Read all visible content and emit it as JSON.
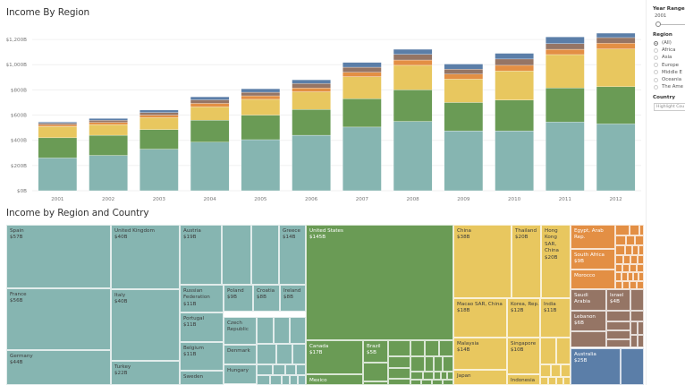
{
  "chart_data": [
    {
      "type": "bar",
      "stacked": true,
      "title": "Income By Region",
      "xlabel": "",
      "ylabel": "",
      "ylim": [
        0,
        1300
      ],
      "grid": true,
      "legend": "none",
      "y_ticks": [
        0,
        200,
        400,
        600,
        800,
        1000,
        1200
      ],
      "y_tick_labels": [
        "$0B",
        "$200B",
        "$400B",
        "$600B",
        "$800B",
        "$1,000B",
        "$1,200B"
      ],
      "categories": [
        "2001",
        "2002",
        "2003",
        "2004",
        "2005",
        "2006",
        "2007",
        "2008",
        "2009",
        "2010",
        "2011",
        "2012"
      ],
      "series": [
        {
          "name": "Europe",
          "color": "#86b5b1",
          "values": [
            260,
            280,
            330,
            385,
            405,
            440,
            505,
            550,
            475,
            475,
            545,
            530
          ]
        },
        {
          "name": "The Americas",
          "color": "#6a9b55",
          "values": [
            160,
            160,
            155,
            175,
            195,
            205,
            225,
            250,
            225,
            245,
            270,
            295
          ]
        },
        {
          "name": "Asia",
          "color": "#e8c75f",
          "values": [
            90,
            85,
            95,
            105,
            125,
            140,
            175,
            195,
            185,
            230,
            265,
            300
          ]
        },
        {
          "name": "Africa",
          "color": "#e38f44",
          "values": [
            14,
            17,
            20,
            28,
            28,
            30,
            35,
            42,
            40,
            45,
            42,
            45
          ]
        },
        {
          "name": "Middle East",
          "color": "#957565",
          "values": [
            12,
            17,
            20,
            28,
            28,
            35,
            40,
            45,
            40,
            50,
            45,
            45
          ]
        },
        {
          "name": "Oceania",
          "color": "#5b7ea8",
          "values": [
            9,
            14,
            20,
            24,
            28,
            30,
            38,
            40,
            40,
            45,
            53,
            35
          ]
        }
      ]
    },
    {
      "type": "treemap",
      "title": "Income by Region and Country",
      "regions": [
        {
          "name": "Europe",
          "color": "#86b5b1",
          "countries": [
            {
              "name": "Spain",
              "value": "$57B"
            },
            {
              "name": "France",
              "value": "$56B"
            },
            {
              "name": "Germany",
              "value": "$44B"
            },
            {
              "name": "United Kingdom",
              "value": "$40B"
            },
            {
              "name": "Italy",
              "value": "$40B"
            },
            {
              "name": "Turkey",
              "value": "$22B"
            },
            {
              "name": "Austria",
              "value": "$19B"
            },
            {
              "name": "Greece",
              "value": "$14B"
            },
            {
              "name": "Russian Federation",
              "value": "$11B"
            },
            {
              "name": "Poland",
              "value": "$9B"
            },
            {
              "name": "Croatia",
              "value": "$8B"
            },
            {
              "name": "Ireland",
              "value": "$8B"
            },
            {
              "name": "Portugal",
              "value": "$11B"
            },
            {
              "name": "Belgium",
              "value": "$11B"
            },
            {
              "name": "Czech Republic",
              "value": ""
            },
            {
              "name": "Denmark",
              "value": ""
            },
            {
              "name": "Hungary",
              "value": ""
            },
            {
              "name": "Sweden",
              "value": ""
            }
          ]
        },
        {
          "name": "The Americas",
          "color": "#6a9b55",
          "countries": [
            {
              "name": "United States",
              "value": "$145B"
            },
            {
              "name": "Canada",
              "value": "$17B"
            },
            {
              "name": "Brazil",
              "value": "$5B"
            },
            {
              "name": "Mexico",
              "value": ""
            }
          ]
        },
        {
          "name": "Asia",
          "color": "#e8c75f",
          "countries": [
            {
              "name": "China",
              "value": "$38B"
            },
            {
              "name": "Thailand",
              "value": "$20B"
            },
            {
              "name": "Hong Kong SAR, China",
              "value": "$20B"
            },
            {
              "name": "Macao SAR, China",
              "value": "$18B"
            },
            {
              "name": "Korea, Rep.",
              "value": "$12B"
            },
            {
              "name": "India",
              "value": "$11B"
            },
            {
              "name": "Malaysia",
              "value": "$14B"
            },
            {
              "name": "Singapore",
              "value": "$10B"
            },
            {
              "name": "Japan",
              "value": ""
            },
            {
              "name": "Indonesia",
              "value": ""
            }
          ]
        },
        {
          "name": "Africa",
          "color": "#e38f44",
          "countries": [
            {
              "name": "Egypt, Arab Rep.",
              "value": ""
            },
            {
              "name": "South Africa",
              "value": "$9B"
            },
            {
              "name": "Morocco",
              "value": ""
            }
          ]
        },
        {
          "name": "Middle East",
          "color": "#957565",
          "countries": [
            {
              "name": "Saudi Arabia",
              "value": ""
            },
            {
              "name": "Israel",
              "value": "$4B"
            },
            {
              "name": "Lebanon",
              "value": "$6B"
            }
          ]
        },
        {
          "name": "Oceania",
          "color": "#5b7ea8",
          "countries": [
            {
              "name": "Australia",
              "value": "$25B"
            }
          ]
        }
      ]
    }
  ],
  "filters": {
    "year_range": {
      "label": "Year Range",
      "value": "2001"
    },
    "region": {
      "label": "Region",
      "selected": "(All)",
      "options": [
        "(All)",
        "Africa",
        "Asia",
        "Europe",
        "Middle E",
        "Oceania",
        "The Ame"
      ]
    },
    "country": {
      "label": "Country",
      "placeholder": "Highlight Cou"
    }
  }
}
